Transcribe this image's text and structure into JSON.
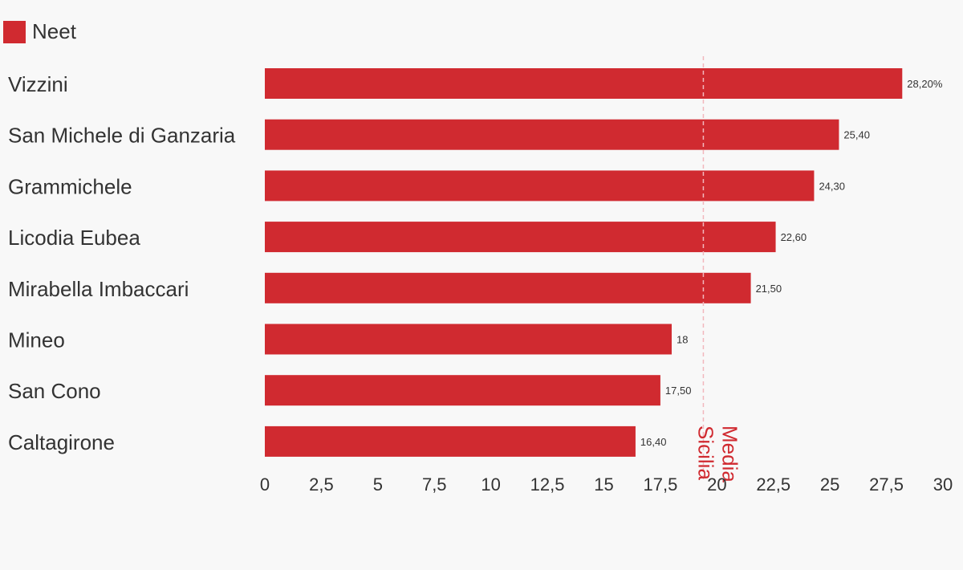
{
  "legend": {
    "label": "Neet"
  },
  "colors": {
    "bar": "#d02a30",
    "reference": "#f2b7bd",
    "reference_label": "#d02a30",
    "text": "#333333"
  },
  "chart_data": {
    "type": "bar",
    "orientation": "horizontal",
    "categories": [
      "Vizzini",
      "San Michele di Ganzaria",
      "Grammichele",
      "Licodia Eubea",
      "Mirabella Imbaccari",
      "Mineo",
      "San Cono",
      "Caltagirone"
    ],
    "series": [
      {
        "name": "Neet",
        "values": [
          28.2,
          25.4,
          24.3,
          22.6,
          21.5,
          18,
          17.5,
          16.4
        ]
      }
    ],
    "data_labels": [
      "28,20%",
      "25,40",
      "24,30",
      "22,60",
      "21,50",
      "18",
      "17,50",
      "16,40"
    ],
    "xlim": [
      0,
      30
    ],
    "x_ticks": [
      0,
      2.5,
      5,
      7.5,
      10,
      12.5,
      15,
      17.5,
      20,
      22.5,
      25,
      27.5,
      30
    ],
    "x_tick_labels": [
      "0",
      "2,5",
      "5",
      "7,5",
      "10",
      "12,5",
      "15",
      "17,5",
      "20",
      "22,5",
      "25",
      "27,5",
      "30"
    ],
    "reference_line": {
      "value": 19.4,
      "label_lines": [
        "Media",
        "Sicilia"
      ]
    },
    "legend_position": "top-left",
    "grid": false,
    "title": "",
    "xlabel": "",
    "ylabel": ""
  }
}
